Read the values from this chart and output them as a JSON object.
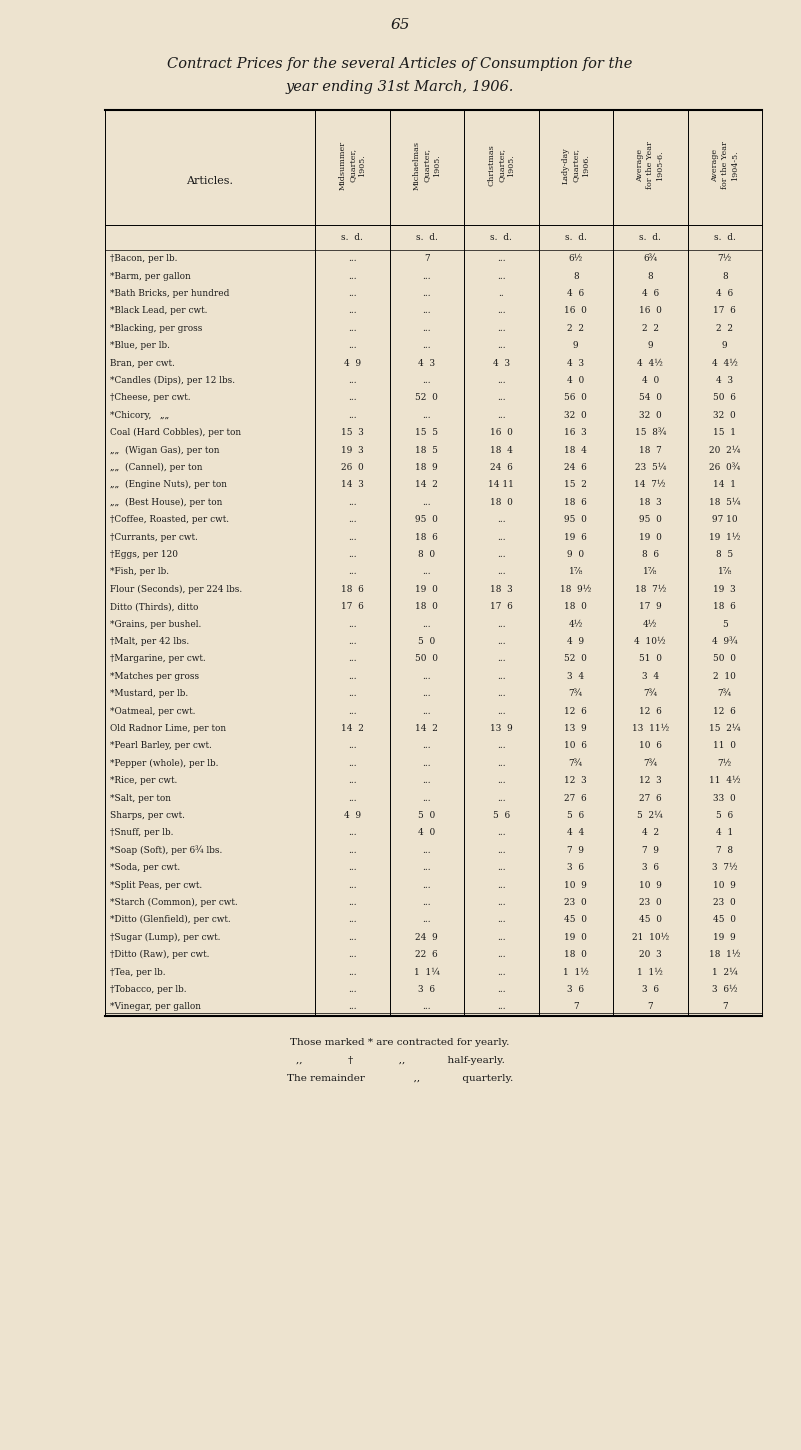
{
  "page_number": "65",
  "title_line1": "Contract Prices for the several Articles of Consumption for the",
  "title_line2": "year ending 31st March, 1906.",
  "bg": "#ede3cf",
  "col_headers": [
    "Midsummer\nQuarter,\n1905.",
    "Michaelmas\nQuarter,\n1905.",
    "Christmas\nQuarter,\n1905.",
    "Lady-day\nQuarter,\n1906.",
    "Average\nfor the Year\n1905-6.",
    "Average\nfor the Year\n1904-5."
  ],
  "rows": [
    [
      "†Bacon, per lb.",
      "...",
      "7",
      "...",
      "6½",
      "6¾",
      "7½"
    ],
    [
      "*Barm, per gallon",
      "...",
      "...",
      "...",
      "8",
      "8",
      "8"
    ],
    [
      "*Bath Bricks, per hundred",
      "...",
      "...",
      "..",
      "4  6",
      "4  6",
      "4  6"
    ],
    [
      "*Black Lead, per cwt.",
      "...",
      "...",
      "...",
      "16  0",
      "16  0",
      "17  6"
    ],
    [
      "*Blacking, per gross",
      "...",
      "...",
      "...",
      "2  2",
      "2  2",
      "2  2"
    ],
    [
      "*Blue, per lb.",
      "...",
      "...",
      "...",
      "9",
      "9",
      "9"
    ],
    [
      "Bran, per cwt.",
      "4  9",
      "4  3",
      "4  3",
      "4  3",
      "4  4½",
      "4  4½"
    ],
    [
      "*Candles (Dips), per 12 lbs.",
      "...",
      "...",
      "...",
      "4  0",
      "4  0",
      "4  3"
    ],
    [
      "†Cheese, per cwt.",
      "...",
      "52  0",
      "...",
      "56  0",
      "54  0",
      "50  6"
    ],
    [
      "*Chicory,   „„",
      "...",
      "...",
      "...",
      "32  0",
      "32  0",
      "32  0"
    ],
    [
      "Coal (Hard Cobbles), per ton",
      "15  3",
      "15  5",
      "16  0",
      "16  3",
      "15  8¾",
      "15  1"
    ],
    [
      "„„  (Wigan Gas), per ton",
      "19  3",
      "18  5",
      "18  4",
      "18  4",
      "18  7",
      "20  2¼"
    ],
    [
      "„„  (Cannel), per ton",
      "26  0",
      "18  9",
      "24  6",
      "24  6",
      "23  5¼",
      "26  0¾"
    ],
    [
      "„„  (Engine Nuts), per ton",
      "14  3",
      "14  2",
      "14 11",
      "15  2",
      "14  7½",
      "14  1"
    ],
    [
      "„„  (Best House), per ton",
      "...",
      "...",
      "18  0",
      "18  6",
      "18  3",
      "18  5¼"
    ],
    [
      "†Coffee, Roasted, per cwt.",
      "...",
      "95  0",
      "...",
      "95  0",
      "95  0",
      "97 10"
    ],
    [
      "†Currants, per cwt.",
      "...",
      "18  6",
      "...",
      "19  6",
      "19  0",
      "19  1½"
    ],
    [
      "†Eggs, per 120",
      "...",
      "8  0",
      "...",
      "9  0",
      "8  6",
      "8  5"
    ],
    [
      "*Fish, per lb.",
      "...",
      "...",
      "...",
      "1⅞",
      "1⅞",
      "1⅞"
    ],
    [
      "Flour (Seconds), per 224 lbs.",
      "18  6",
      "19  0",
      "18  3",
      "18  9½",
      "18  7½",
      "19  3"
    ],
    [
      "Ditto (Thirds), ditto",
      "17  6",
      "18  0",
      "17  6",
      "18  0",
      "17  9",
      "18  6"
    ],
    [
      "*Grains, per bushel.",
      "...",
      "...",
      "...",
      "4½",
      "4½",
      "5"
    ],
    [
      "†Malt, per 42 lbs.",
      "...",
      "5  0",
      "...",
      "4  9",
      "4  10½",
      "4  9¾"
    ],
    [
      "†Margarine, per cwt.",
      "...",
      "50  0",
      "...",
      "52  0",
      "51  0",
      "50  0"
    ],
    [
      "*Matches per gross",
      "...",
      "...",
      "...",
      "3  4",
      "3  4",
      "2  10"
    ],
    [
      "*Mustard, per lb.",
      "...",
      "...",
      "...",
      "7¾",
      "7¾",
      "7¾"
    ],
    [
      "*Oatmeal, per cwt.",
      "...",
      "...",
      "...",
      "12  6",
      "12  6",
      "12  6"
    ],
    [
      "Old Radnor Lime, per ton",
      "14  2",
      "14  2",
      "13  9",
      "13  9",
      "13  11½",
      "15  2¼"
    ],
    [
      "*Pearl Barley, per cwt.",
      "...",
      "...",
      "...",
      "10  6",
      "10  6",
      "11  0"
    ],
    [
      "*Pepper (whole), per lb.",
      "...",
      "...",
      "...",
      "7¾",
      "7¾",
      "7½"
    ],
    [
      "*Rice, per cwt.",
      "...",
      "...",
      "...",
      "12  3",
      "12  3",
      "11  4½"
    ],
    [
      "*Salt, per ton",
      "...",
      "...",
      "...",
      "27  6",
      "27  6",
      "33  0"
    ],
    [
      "Sharps, per cwt.",
      "4  9",
      "5  0",
      "5  6",
      "5  6",
      "5  2¼",
      "5  6"
    ],
    [
      "†Snuff, per lb.",
      "...",
      "4  0",
      "...",
      "4  4",
      "4  2",
      "4  1"
    ],
    [
      "*Soap (Soft), per 6¾ lbs.",
      "...",
      "...",
      "...",
      "7  9",
      "7  9",
      "7  8"
    ],
    [
      "*Soda, per cwt.",
      "...",
      "...",
      "...",
      "3  6",
      "3  6",
      "3  7½"
    ],
    [
      "*Split Peas, per cwt.",
      "...",
      "...",
      "...",
      "10  9",
      "10  9",
      "10  9"
    ],
    [
      "*Starch (Common), per cwt.",
      "...",
      "...",
      "...",
      "23  0",
      "23  0",
      "23  0"
    ],
    [
      "*Ditto (Glenfield), per cwt.",
      "...",
      "...",
      "...",
      "45  0",
      "45  0",
      "45  0"
    ],
    [
      "†Sugar (Lump), per cwt.",
      "...",
      "24  9",
      "...",
      "19  0",
      "21  10½",
      "19  9"
    ],
    [
      "†Ditto (Raw), per cwt.",
      "...",
      "22  6",
      "...",
      "18  0",
      "20  3",
      "18  1½"
    ],
    [
      "†Tea, per lb.",
      "...",
      "1  1¼",
      "...",
      "1  1½",
      "1  1½",
      "1  2¼"
    ],
    [
      "†Tobacco, per lb.",
      "...",
      "3  6",
      "...",
      "3  6",
      "3  6",
      "3  6½"
    ],
    [
      "*Vinegar, per gallon",
      "...",
      "...",
      "...",
      "7",
      "7",
      "7"
    ]
  ],
  "footer": [
    "Those marked * are contracted for yearly.",
    ",,              †              ,,             half-yearly.",
    "The remainder               ,,             quarterly."
  ]
}
